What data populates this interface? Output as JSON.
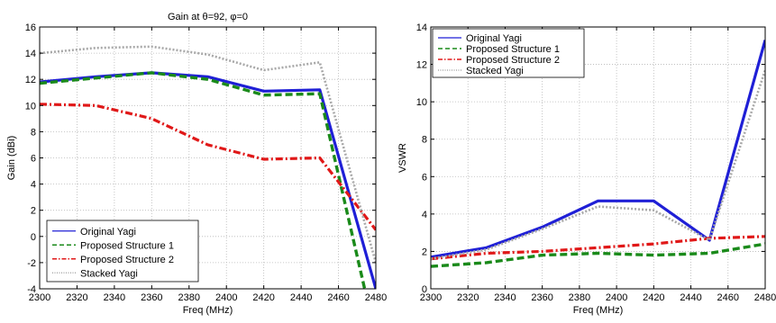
{
  "colors": {
    "original_yagi": "#1f1fd6",
    "proposed_structure_1": "#1a8a1a",
    "proposed_structure_2": "#e01818",
    "stacked_yagi": "#a8a8a8",
    "grid": "#b8b8b8"
  },
  "chart_data": [
    {
      "type": "line",
      "title": "Gain at θ=92, φ=0",
      "xlabel": "Freq (MHz)",
      "ylabel": "Gain (dBi)",
      "xlim": [
        2300,
        2480
      ],
      "ylim": [
        -4,
        16
      ],
      "xticks": [
        2300,
        2320,
        2340,
        2360,
        2380,
        2400,
        2420,
        2440,
        2460,
        2480
      ],
      "yticks": [
        -4,
        -2,
        0,
        2,
        4,
        6,
        8,
        10,
        12,
        14,
        16
      ],
      "grid": true,
      "legend_position": "bottom-left",
      "series": [
        {
          "name": "Original Yagi",
          "color_key": "original_yagi",
          "style": "solid",
          "x": [
            2300,
            2330,
            2360,
            2390,
            2420,
            2450,
            2480
          ],
          "y": [
            11.8,
            12.2,
            12.5,
            12.2,
            11.1,
            11.2,
            -4.0
          ]
        },
        {
          "name": "Proposed Structure 1",
          "color_key": "proposed_structure_1",
          "style": "dashed",
          "x": [
            2300,
            2330,
            2360,
            2390,
            2420,
            2450,
            2474
          ],
          "y": [
            11.7,
            12.1,
            12.5,
            12.0,
            10.8,
            10.9,
            -4.0
          ]
        },
        {
          "name": "Proposed Structure 2",
          "color_key": "proposed_structure_2",
          "style": "dashdot",
          "x": [
            2300,
            2330,
            2360,
            2390,
            2420,
            2450,
            2480
          ],
          "y": [
            10.1,
            10.0,
            9.0,
            7.0,
            5.9,
            6.0,
            0.5
          ]
        },
        {
          "name": "Stacked Yagi",
          "color_key": "stacked_yagi",
          "style": "dotted",
          "x": [
            2300,
            2330,
            2360,
            2390,
            2420,
            2450,
            2480
          ],
          "y": [
            14.0,
            14.4,
            14.5,
            13.9,
            12.7,
            13.3,
            -2.0
          ]
        }
      ]
    },
    {
      "type": "line",
      "title": "",
      "xlabel": "Freq (MHz)",
      "ylabel": "VSWR",
      "xlim": [
        2300,
        2480
      ],
      "ylim": [
        0,
        14
      ],
      "xticks": [
        2300,
        2320,
        2340,
        2360,
        2380,
        2400,
        2420,
        2440,
        2460,
        2480
      ],
      "yticks": [
        0,
        2,
        4,
        6,
        8,
        10,
        12,
        14
      ],
      "grid": true,
      "legend_position": "top-left",
      "series": [
        {
          "name": "Original Yagi",
          "color_key": "original_yagi",
          "style": "solid",
          "x": [
            2300,
            2330,
            2360,
            2390,
            2420,
            2450,
            2480
          ],
          "y": [
            1.7,
            2.2,
            3.3,
            4.7,
            4.7,
            2.6,
            13.3
          ]
        },
        {
          "name": "Proposed Structure 1",
          "color_key": "proposed_structure_1",
          "style": "dashed",
          "x": [
            2300,
            2330,
            2360,
            2390,
            2420,
            2450,
            2480
          ],
          "y": [
            1.2,
            1.4,
            1.8,
            1.9,
            1.8,
            1.9,
            2.4
          ]
        },
        {
          "name": "Proposed Structure 2",
          "color_key": "proposed_structure_2",
          "style": "dashdot",
          "x": [
            2300,
            2330,
            2360,
            2390,
            2420,
            2450,
            2480
          ],
          "y": [
            1.6,
            1.9,
            2.0,
            2.2,
            2.4,
            2.7,
            2.8
          ]
        },
        {
          "name": "Stacked Yagi",
          "color_key": "stacked_yagi",
          "style": "dotted",
          "x": [
            2300,
            2330,
            2360,
            2390,
            2420,
            2450,
            2480
          ],
          "y": [
            1.6,
            2.1,
            3.2,
            4.4,
            4.2,
            2.6,
            11.7
          ]
        }
      ]
    }
  ]
}
